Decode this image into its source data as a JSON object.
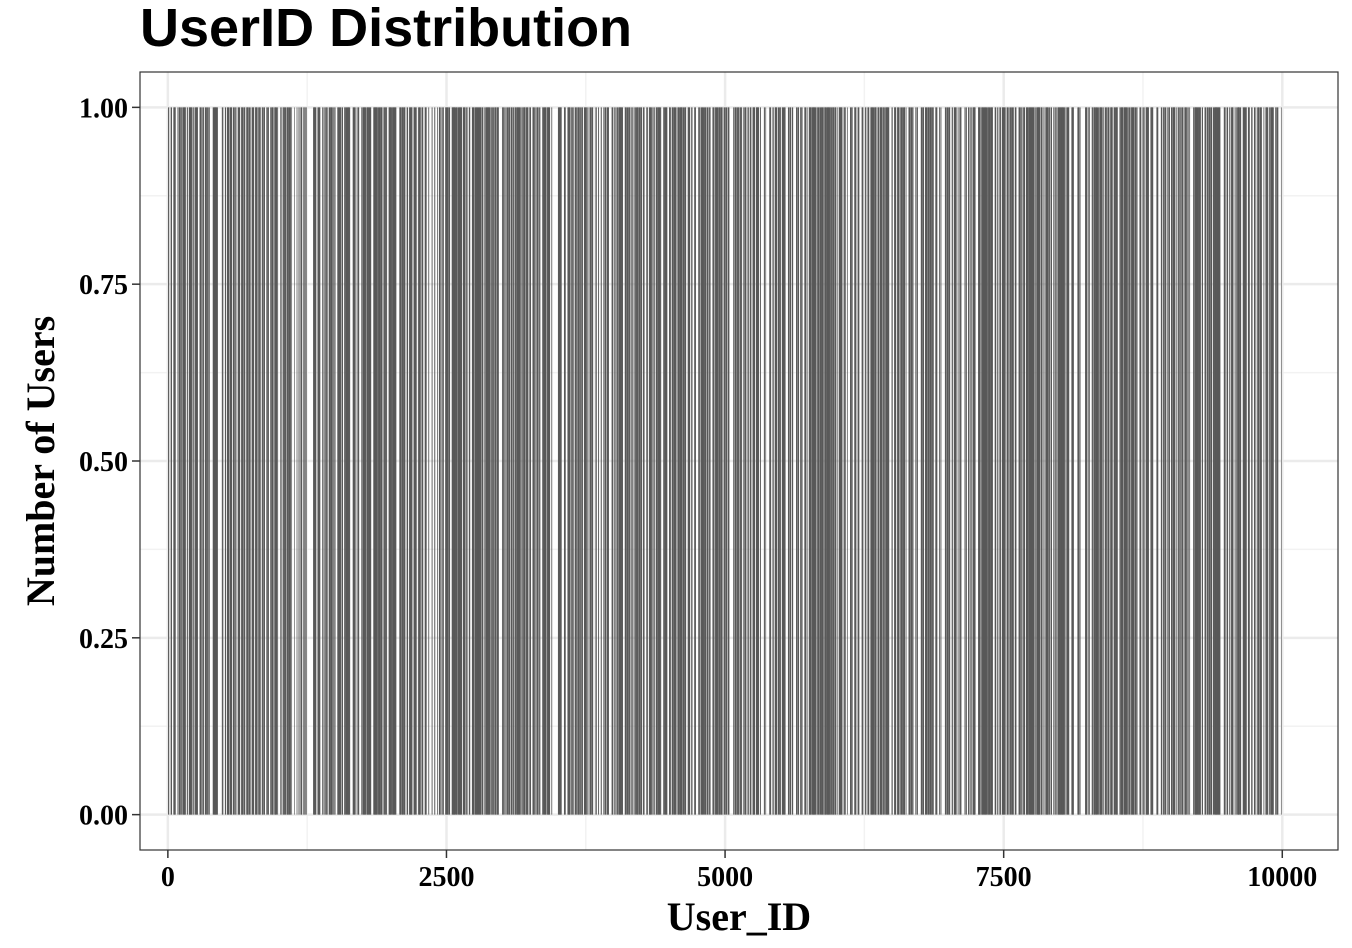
{
  "chart_data": {
    "type": "bar",
    "title": "UserID Distribution",
    "xlabel": "User_ID",
    "ylabel": "Number of Users",
    "x_ticks": [
      "0",
      "2500",
      "5000",
      "7500",
      "10000"
    ],
    "y_ticks": [
      "0.00",
      "0.25",
      "0.50",
      "0.75",
      "1.00"
    ],
    "xlim": [
      -250,
      10500
    ],
    "ylim": [
      -0.05,
      1.05
    ],
    "x_range": [
      1,
      10000
    ],
    "value": 1,
    "bar_density": 0.55,
    "grid": true,
    "legend": "none",
    "colors": {
      "bar": "#595959",
      "grid_major": "#ebebeb",
      "grid_minor": "#f2f2f2",
      "panel_border": "#333333",
      "background": "#ffffff"
    }
  }
}
